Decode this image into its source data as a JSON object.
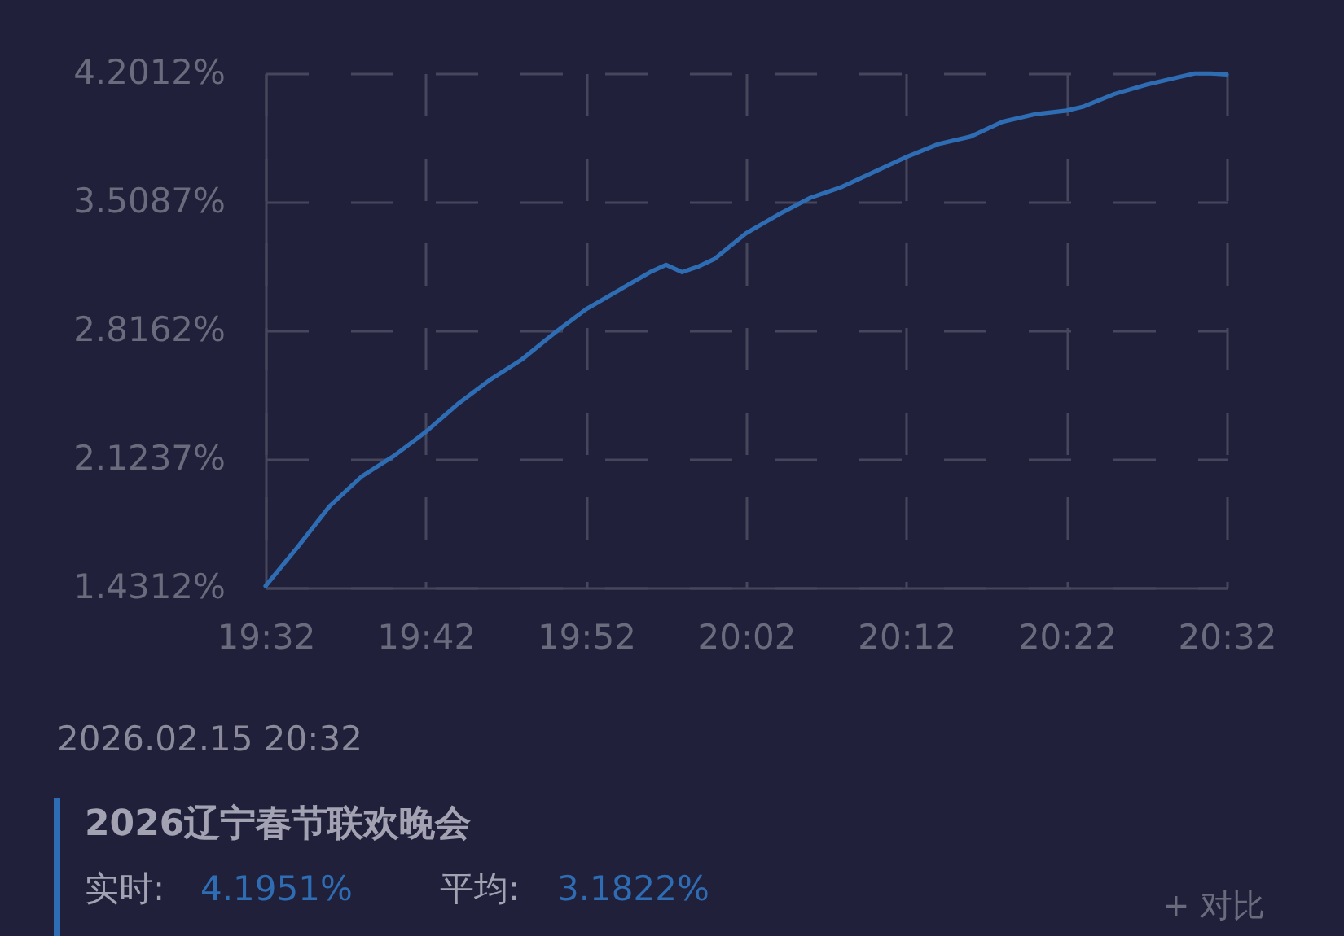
{
  "chart_data": {
    "type": "line",
    "series": [
      {
        "name": "2026辽宁春节联欢晚会",
        "color": "#2e6db4",
        "x": [
          19.5333,
          19.5667,
          19.6,
          19.6333,
          19.6667,
          19.7,
          19.7333,
          19.7667,
          19.8,
          19.8333,
          19.8667,
          19.9,
          19.9333,
          19.95,
          19.9667,
          19.9833,
          20.0,
          20.0333,
          20.0667,
          20.1,
          20.1333,
          20.1667,
          20.2,
          20.2333,
          20.2667,
          20.3,
          20.3333,
          20.3667,
          20.3833,
          20.4167,
          20.45,
          20.4833,
          20.5,
          20.5167,
          20.5333
        ],
        "values": [
          1.44,
          1.65,
          1.87,
          2.03,
          2.14,
          2.27,
          2.42,
          2.55,
          2.66,
          2.8,
          2.93,
          3.03,
          3.13,
          3.17,
          3.13,
          3.16,
          3.2,
          3.34,
          3.44,
          3.53,
          3.59,
          3.67,
          3.75,
          3.82,
          3.86,
          3.94,
          3.98,
          4.0,
          4.02,
          4.09,
          4.14,
          4.18,
          4.2,
          4.2,
          4.1951
        ]
      }
    ],
    "xlim": [
      19.5333,
      20.5333
    ],
    "xticks": [
      {
        "value": 19.5333,
        "label": "19:32"
      },
      {
        "value": 19.7,
        "label": "19:42"
      },
      {
        "value": 19.8667,
        "label": "19:52"
      },
      {
        "value": 20.0333,
        "label": "20:02"
      },
      {
        "value": 20.2,
        "label": "20:12"
      },
      {
        "value": 20.3667,
        "label": "20:22"
      },
      {
        "value": 20.5333,
        "label": "20:32"
      }
    ],
    "ylim": [
      1.4312,
      4.2012
    ],
    "yticks": [
      {
        "value": 1.4312,
        "label": "1.4312%"
      },
      {
        "value": 2.1237,
        "label": "2.1237%"
      },
      {
        "value": 2.8162,
        "label": "2.8162%"
      },
      {
        "value": 3.5087,
        "label": "3.5087%"
      },
      {
        "value": 4.2012,
        "label": "4.2012%"
      }
    ],
    "grid": true,
    "legend": "bottom",
    "annotations": [
      "2026.02.15 20:32",
      "实时:",
      "4.1951%",
      "平均:",
      "3.1822%",
      "+ 对比"
    ]
  }
}
